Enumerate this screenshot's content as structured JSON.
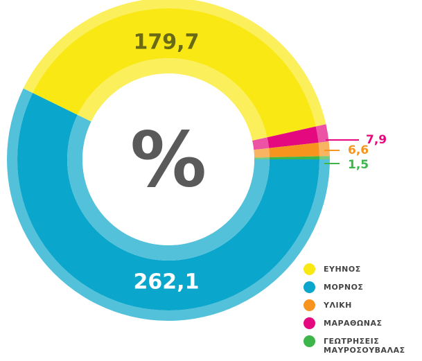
{
  "chart_data": {
    "type": "donut",
    "center_label": "%",
    "categories": [
      "ΕΥΗΝΟΣ",
      "ΜΟΡΝΟΣ",
      "ΥΛΙΚΗ",
      "ΜΑΡΑΘΩΝΑΣ",
      "ΓΕΩΤΡΗΣΕΙΣ ΜΑΥΡΟΣΟΥΒΑΛΑΣ"
    ],
    "values": [
      179.7,
      262.1,
      6.6,
      7.9,
      1.5
    ],
    "value_labels": [
      "179,7",
      "262,1",
      "6,6",
      "7,9",
      "1,5"
    ],
    "colors": [
      "#f9e814",
      "#0ba6cc",
      "#f7941d",
      "#e5097f",
      "#3cb54a"
    ],
    "legend": "bottom-right"
  }
}
